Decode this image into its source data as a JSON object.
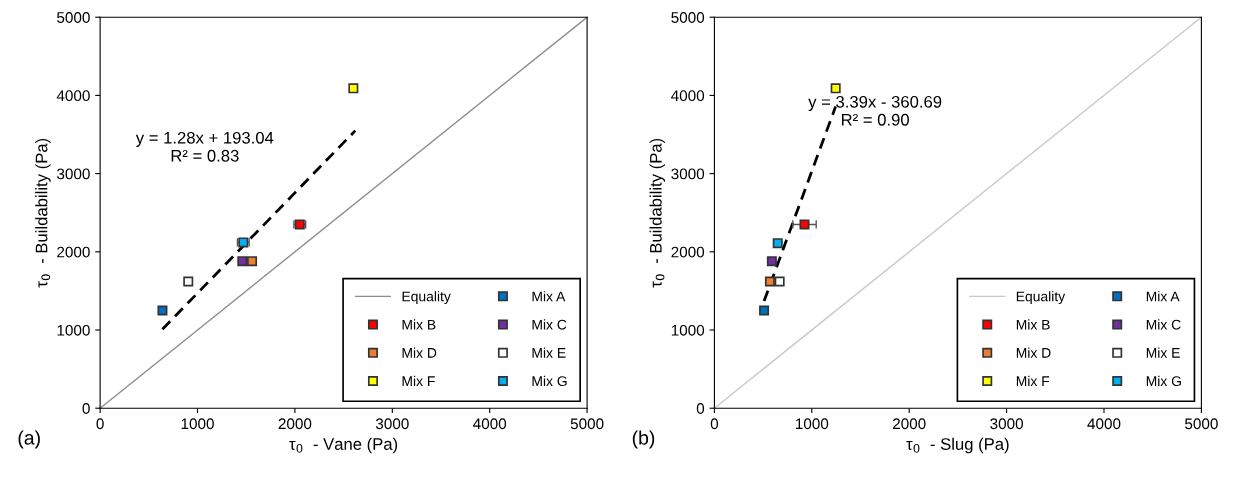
{
  "chart_data": [
    {
      "type": "scatter",
      "xlabel": "τ$_{0}$  - Vane (Pa)",
      "ylabel": "τ$_{0}$  - Buildability (Pa)",
      "xlim": [
        0,
        5000
      ],
      "ylim": [
        0,
        5000
      ],
      "xticks": [
        0,
        1000,
        2000,
        3000,
        4000,
        5000
      ],
      "yticks": [
        0,
        1000,
        2000,
        3000,
        4000,
        5000
      ],
      "grid": false,
      "legend": "bottom right",
      "marker": "square",
      "series": [
        {
          "name": "Equality",
          "type": "line",
          "color": "#8c8c8c",
          "x": [
            0,
            5000
          ],
          "values": [
            0,
            5000
          ],
          "marker": "none"
        },
        {
          "name": "Mix A",
          "color": "#0070c0",
          "x": [
            640
          ],
          "values": [
            1250
          ]
        },
        {
          "name": "Mix B",
          "color": "#ff0000",
          "x": [
            2050
          ],
          "values": [
            2350
          ],
          "xerrors": [
            60
          ]
        },
        {
          "name": "Mix C",
          "color": "#7030a0",
          "x": [
            1460
          ],
          "values": [
            1880
          ]
        },
        {
          "name": "Mix D",
          "color": "#ed7d31",
          "x": [
            1560
          ],
          "values": [
            1880
          ]
        },
        {
          "name": "Mix E",
          "color": "#ffffff",
          "x": [
            905
          ],
          "values": [
            1620
          ]
        },
        {
          "name": "Mix F",
          "color": "#ffff00",
          "x": [
            2600
          ],
          "values": [
            4090
          ]
        },
        {
          "name": "Mix G",
          "color": "#00b0f0",
          "x": [
            1470
          ],
          "values": [
            2120
          ],
          "xerrors": [
            60
          ]
        },
        {
          "type": "line",
          "color": "#000000",
          "line_style": "dashed",
          "x": [
            640,
            2620
          ],
          "values": [
            1010,
            3550
          ],
          "marker": "none"
        }
      ],
      "annotations": [
        "y = 1.28x + 193.04\nR² = 0.83",
        "(a)"
      ]
    },
    {
      "type": "scatter",
      "xlabel": "τ$_{0}$  - Slug (Pa)",
      "ylabel": "τ$_{0}$  - Buildability (Pa)",
      "xlim": [
        0,
        5000
      ],
      "ylim": [
        0,
        5000
      ],
      "xticks": [
        0,
        1000,
        2000,
        3000,
        4000,
        5000
      ],
      "yticks": [
        0,
        1000,
        2000,
        3000,
        4000,
        5000
      ],
      "grid": false,
      "legend": "bottom right",
      "marker": "square",
      "series": [
        {
          "name": "Equality",
          "type": "line",
          "color": "#c8c8c8",
          "x": [
            0,
            5000
          ],
          "values": [
            0,
            5000
          ],
          "marker": "none"
        },
        {
          "name": "Mix A",
          "color": "#0070c0",
          "x": [
            510
          ],
          "values": [
            1250
          ]
        },
        {
          "name": "Mix B",
          "color": "#ff0000",
          "x": [
            925
          ],
          "values": [
            2350
          ],
          "xerrors": [
            120
          ]
        },
        {
          "name": "Mix C",
          "color": "#7030a0",
          "x": [
            590
          ],
          "values": [
            1880
          ]
        },
        {
          "name": "Mix D",
          "color": "#ed7d31",
          "x": [
            570
          ],
          "values": [
            1620
          ]
        },
        {
          "name": "Mix E",
          "color": "#ffffff",
          "x": [
            670
          ],
          "values": [
            1620
          ]
        },
        {
          "name": "Mix F",
          "color": "#ffff00",
          "x": [
            1245
          ],
          "values": [
            4090
          ]
        },
        {
          "name": "Mix G",
          "color": "#00b0f0",
          "x": [
            650
          ],
          "values": [
            2110
          ]
        },
        {
          "type": "line",
          "color": "#000000",
          "line_style": "dashed",
          "x": [
            510,
            1245
          ],
          "values": [
            1370,
            3860
          ],
          "marker": "none"
        }
      ],
      "annotations": [
        "y = 3.39x - 360.69\nR² = 0.90",
        "(b)"
      ]
    }
  ]
}
